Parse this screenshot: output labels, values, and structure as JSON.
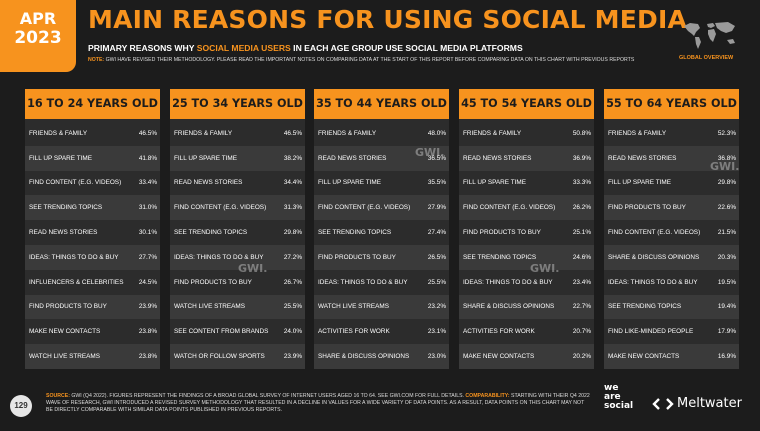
{
  "badge": {
    "month": "APR",
    "year": "2023"
  },
  "title": "MAIN REASONS FOR USING SOCIAL MEDIA",
  "subtitle": {
    "pre": "PRIMARY REASONS WHY ",
    "highlight": "SOCIAL MEDIA USERS",
    "post": " IN EACH AGE GROUP USE SOCIAL MEDIA PLATFORMS"
  },
  "note": {
    "label": "NOTE:",
    "text": " GWI HAVE REVISED THEIR METHODOLOGY. PLEASE READ THE IMPORTANT NOTES ON COMPARING DATA AT THE START OF THIS REPORT BEFORE COMPARING DATA ON THIS CHART WITH PREVIOUS REPORTS"
  },
  "map_label": "GLOBAL OVERVIEW",
  "watermark": "GWI.",
  "page_number": "129",
  "source": {
    "label": "SOURCE:",
    "text1": " GWI (Q4 2022). FIGURES REPRESENT THE FINDINGS OF A BROAD GLOBAL SURVEY OF INTERNET USERS AGED 16 TO 64. SEE GWI.COM FOR FULL DETAILS. ",
    "label2": "COMPARABILITY:",
    "text2": " STARTING WITH THEIR Q4 2022 WAVE OF RESEARCH, GWI INTRODUCED A REVISED SURVEY METHODOLOGY THAT RESULTED IN A DECLINE IN VALUES FOR A WIDE VARIETY OF DATA POINTS. AS A RESULT, DATA POINTS ON THIS CHART MAY NOT BE DIRECTLY COMPARABLE WITH SIMILAR DATA POINTS PUBLISHED IN PREVIOUS REPORTS."
  },
  "logos": {
    "was1": "we",
    "was2": "are",
    "was3": "social",
    "meltwater": "Meltwater"
  },
  "colors": {
    "accent": "#f7931e",
    "background": "#1c1c1c",
    "row_light": "#3a3a3a",
    "row_dark": "#2c2c2c"
  },
  "chart_data": {
    "type": "table",
    "title": "MAIN REASONS FOR USING SOCIAL MEDIA",
    "groups": [
      {
        "name": "16 TO 24 YEARS OLD",
        "rows": [
          {
            "label": "FRIENDS & FAMILY",
            "value": "46.5%"
          },
          {
            "label": "FILL UP SPARE TIME",
            "value": "41.8%"
          },
          {
            "label": "FIND CONTENT (E.G. VIDEOS)",
            "value": "33.4%"
          },
          {
            "label": "SEE TRENDING TOPICS",
            "value": "31.0%"
          },
          {
            "label": "READ NEWS STORIES",
            "value": "30.1%"
          },
          {
            "label": "IDEAS: THINGS TO DO & BUY",
            "value": "27.7%"
          },
          {
            "label": "INFLUENCERS & CELEBRITIES",
            "value": "24.5%"
          },
          {
            "label": "FIND PRODUCTS TO BUY",
            "value": "23.9%"
          },
          {
            "label": "MAKE NEW CONTACTS",
            "value": "23.8%"
          },
          {
            "label": "WATCH LIVE STREAMS",
            "value": "23.8%"
          }
        ]
      },
      {
        "name": "25 TO 34 YEARS OLD",
        "rows": [
          {
            "label": "FRIENDS & FAMILY",
            "value": "46.5%"
          },
          {
            "label": "FILL UP SPARE TIME",
            "value": "38.2%"
          },
          {
            "label": "READ NEWS STORIES",
            "value": "34.4%"
          },
          {
            "label": "FIND CONTENT (E.G. VIDEOS)",
            "value": "31.3%"
          },
          {
            "label": "SEE TRENDING TOPICS",
            "value": "29.8%"
          },
          {
            "label": "IDEAS: THINGS TO DO & BUY",
            "value": "27.2%"
          },
          {
            "label": "FIND PRODUCTS TO BUY",
            "value": "26.7%"
          },
          {
            "label": "WATCH LIVE STREAMS",
            "value": "25.5%"
          },
          {
            "label": "SEE CONTENT FROM BRANDS",
            "value": "24.0%"
          },
          {
            "label": "WATCH OR FOLLOW SPORTS",
            "value": "23.9%"
          }
        ]
      },
      {
        "name": "35 TO 44 YEARS OLD",
        "rows": [
          {
            "label": "FRIENDS & FAMILY",
            "value": "48.0%"
          },
          {
            "label": "READ NEWS STORIES",
            "value": "36.5%"
          },
          {
            "label": "FILL UP SPARE TIME",
            "value": "35.5%"
          },
          {
            "label": "FIND CONTENT (E.G. VIDEOS)",
            "value": "27.9%"
          },
          {
            "label": "SEE TRENDING TOPICS",
            "value": "27.4%"
          },
          {
            "label": "FIND PRODUCTS TO BUY",
            "value": "26.5%"
          },
          {
            "label": "IDEAS: THINGS TO DO & BUY",
            "value": "25.5%"
          },
          {
            "label": "WATCH LIVE STREAMS",
            "value": "23.2%"
          },
          {
            "label": "ACTIVITIES FOR WORK",
            "value": "23.1%"
          },
          {
            "label": "SHARE & DISCUSS OPINIONS",
            "value": "23.0%"
          }
        ]
      },
      {
        "name": "45 TO 54 YEARS OLD",
        "rows": [
          {
            "label": "FRIENDS & FAMILY",
            "value": "50.8%"
          },
          {
            "label": "READ NEWS STORIES",
            "value": "36.9%"
          },
          {
            "label": "FILL UP SPARE TIME",
            "value": "33.3%"
          },
          {
            "label": "FIND CONTENT (E.G. VIDEOS)",
            "value": "26.2%"
          },
          {
            "label": "FIND PRODUCTS TO BUY",
            "value": "25.1%"
          },
          {
            "label": "SEE TRENDING TOPICS",
            "value": "24.6%"
          },
          {
            "label": "IDEAS: THINGS TO DO & BUY",
            "value": "23.4%"
          },
          {
            "label": "SHARE & DISCUSS OPINIONS",
            "value": "22.7%"
          },
          {
            "label": "ACTIVITIES FOR WORK",
            "value": "20.7%"
          },
          {
            "label": "MAKE NEW CONTACTS",
            "value": "20.2%"
          }
        ]
      },
      {
        "name": "55 TO 64 YEARS OLD",
        "rows": [
          {
            "label": "FRIENDS & FAMILY",
            "value": "52.3%"
          },
          {
            "label": "READ NEWS STORIES",
            "value": "36.8%"
          },
          {
            "label": "FILL UP SPARE TIME",
            "value": "29.8%"
          },
          {
            "label": "FIND PRODUCTS TO BUY",
            "value": "22.6%"
          },
          {
            "label": "FIND CONTENT (E.G. VIDEOS)",
            "value": "21.5%"
          },
          {
            "label": "SHARE & DISCUSS OPINIONS",
            "value": "20.3%"
          },
          {
            "label": "IDEAS: THINGS TO DO & BUY",
            "value": "19.5%"
          },
          {
            "label": "SEE TRENDING TOPICS",
            "value": "19.4%"
          },
          {
            "label": "FIND LIKE-MINDED PEOPLE",
            "value": "17.9%"
          },
          {
            "label": "MAKE NEW CONTACTS",
            "value": "16.9%"
          }
        ]
      }
    ]
  }
}
